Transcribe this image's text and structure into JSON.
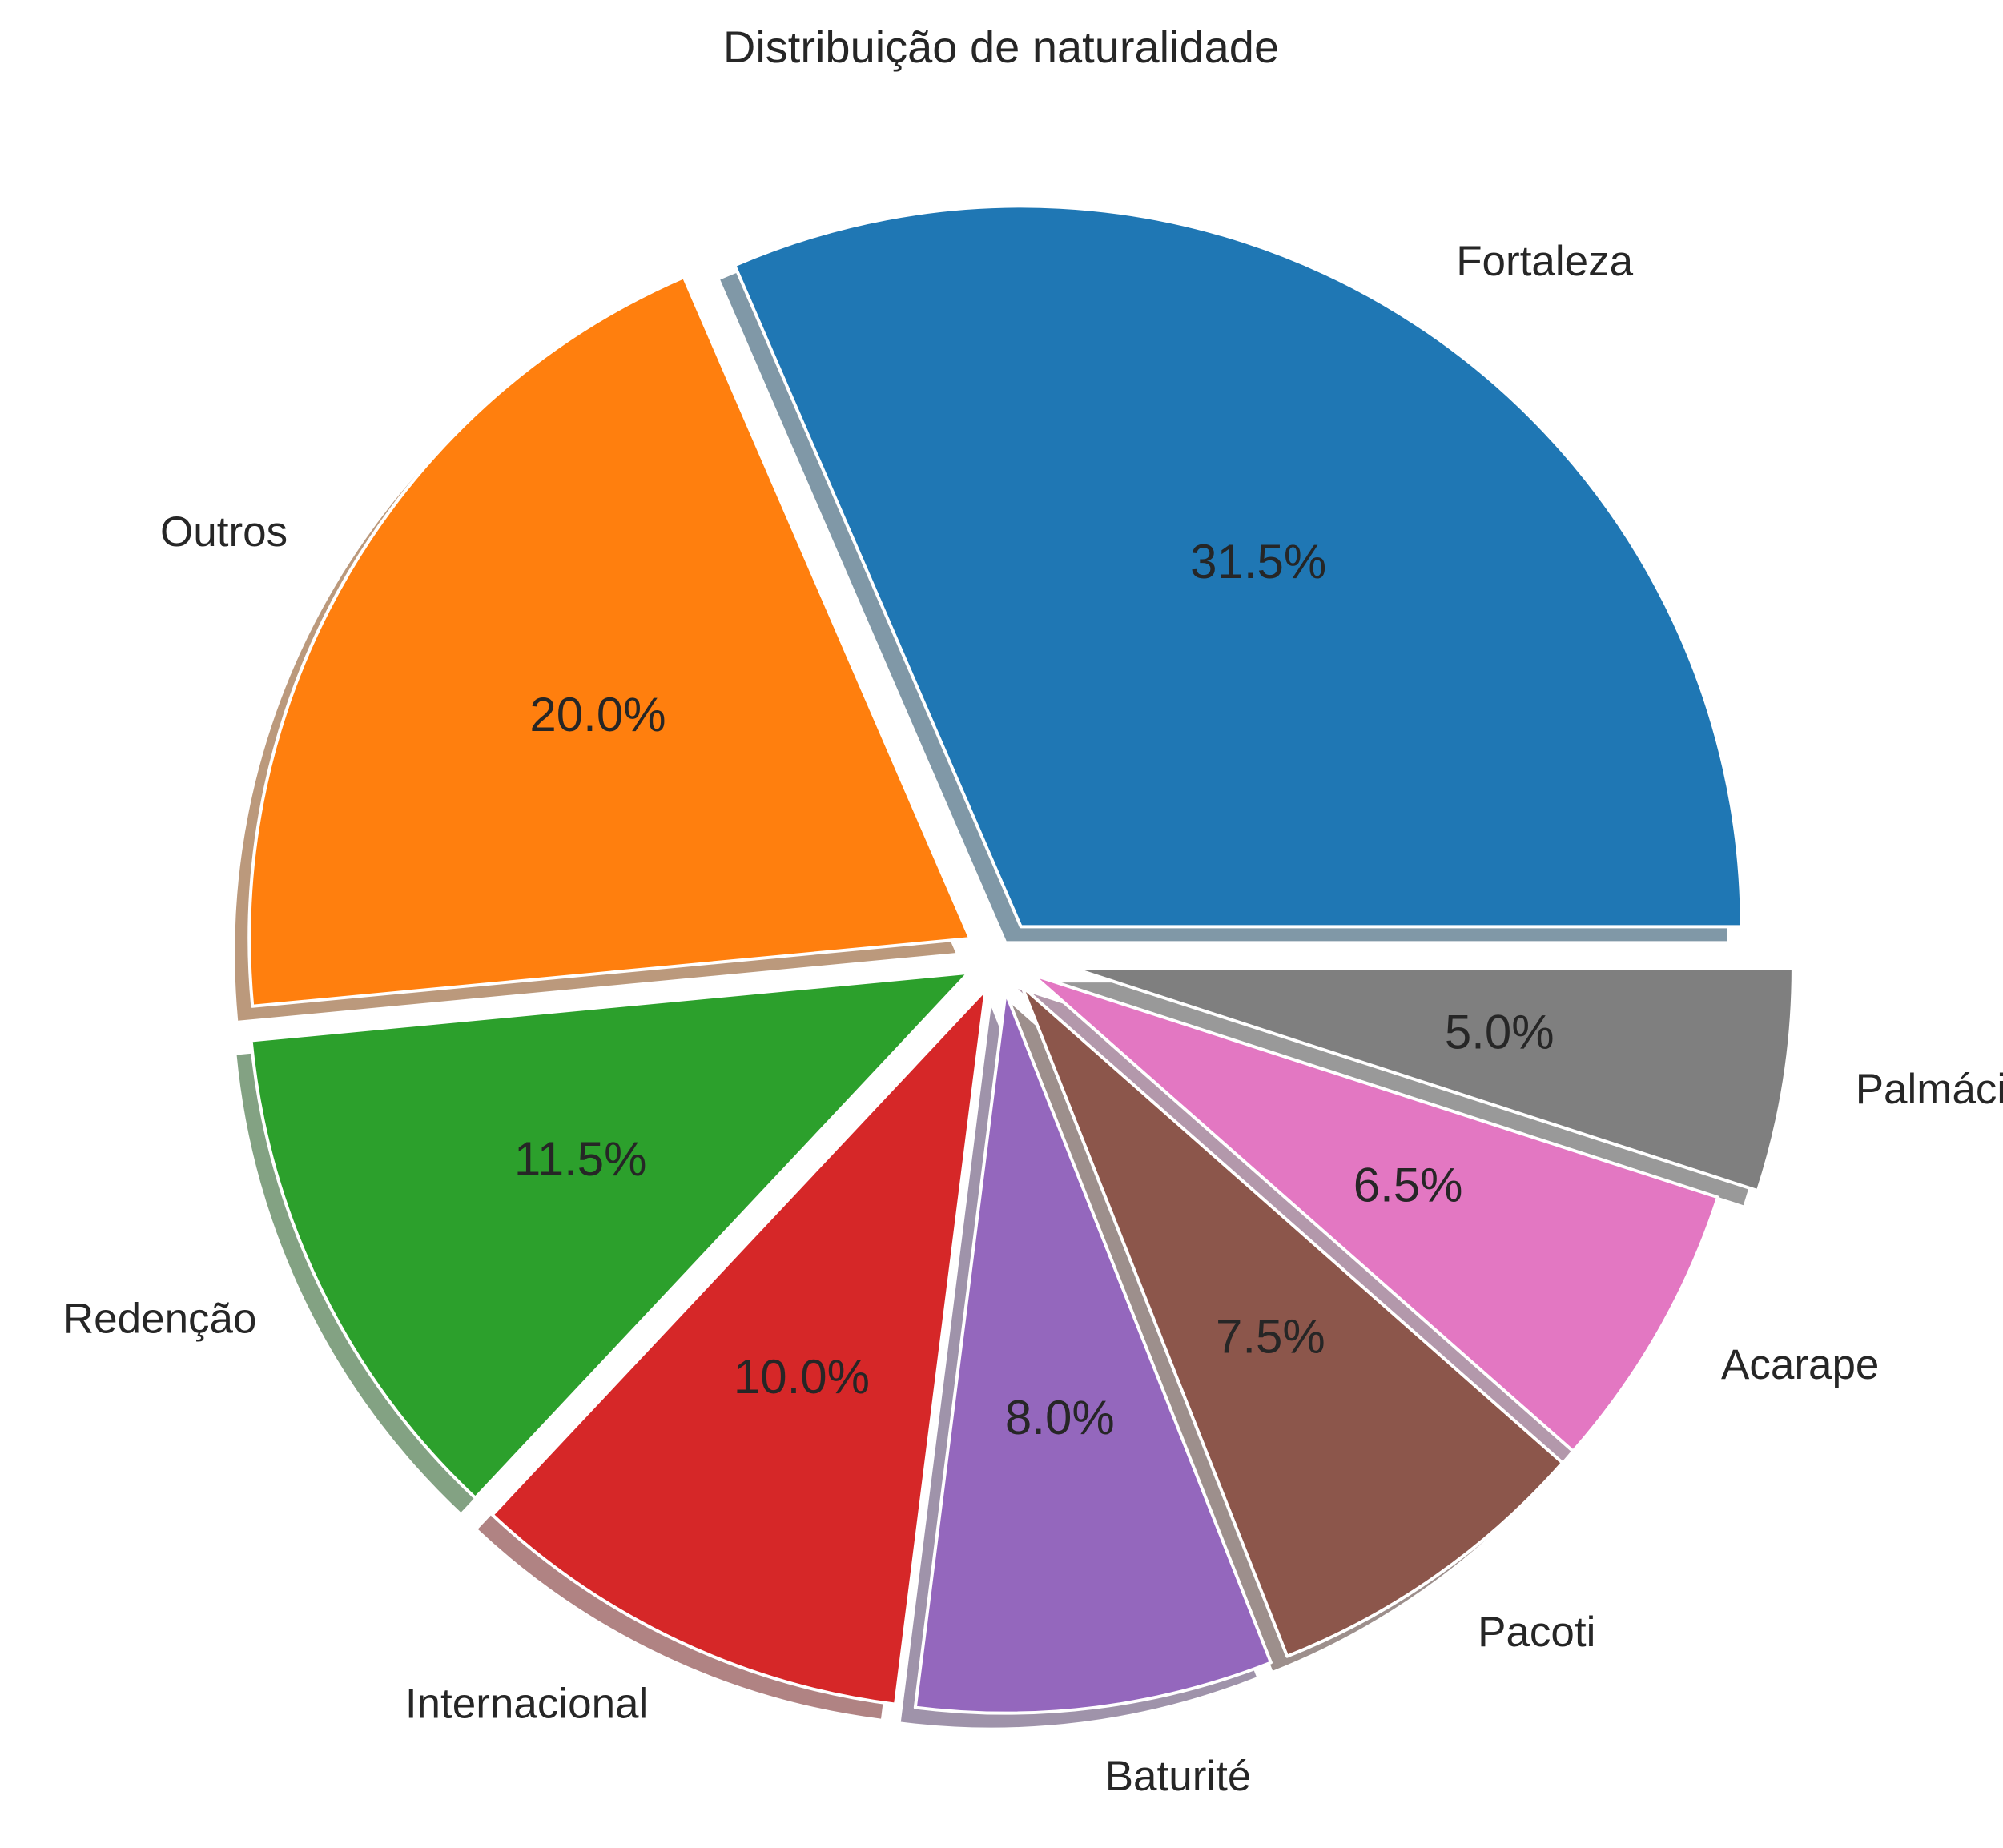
{
  "chart_data": {
    "type": "pie",
    "title": "Distribuição de naturalidade",
    "start_angle_deg": 0,
    "direction": "counterclockwise",
    "slices": [
      {
        "label": "Fortaleza",
        "value": 31.5,
        "pct_label": "31.5%",
        "color": "#1f77b4",
        "explode": 0.05
      },
      {
        "label": "Outros",
        "value": 20.0,
        "pct_label": "20.0%",
        "color": "#ff7f0e",
        "explode": 0.05
      },
      {
        "label": "Redenção",
        "value": 11.5,
        "pct_label": "11.5%",
        "color": "#2ca02c",
        "explode": 0.05
      },
      {
        "label": "Internacional",
        "value": 10.0,
        "pct_label": "10.0%",
        "color": "#d62728",
        "explode": 0.05
      },
      {
        "label": "Baturité",
        "value": 8.0,
        "pct_label": "8.0%",
        "color": "#9467bd",
        "explode": 0.05
      },
      {
        "label": "Pacoti",
        "value": 7.5,
        "pct_label": "7.5%",
        "color": "#8c564b",
        "explode": 0.05
      },
      {
        "label": "Acarape",
        "value": 6.5,
        "pct_label": "6.5%",
        "color": "#e377c2",
        "explode": 0.05
      },
      {
        "label": "Palmácia",
        "value": 5.0,
        "pct_label": "5.0%",
        "color": "#7f7f7f",
        "explode": 0.1
      }
    ],
    "shadow": true,
    "edge_color": "#ffffff",
    "legend": "none"
  }
}
